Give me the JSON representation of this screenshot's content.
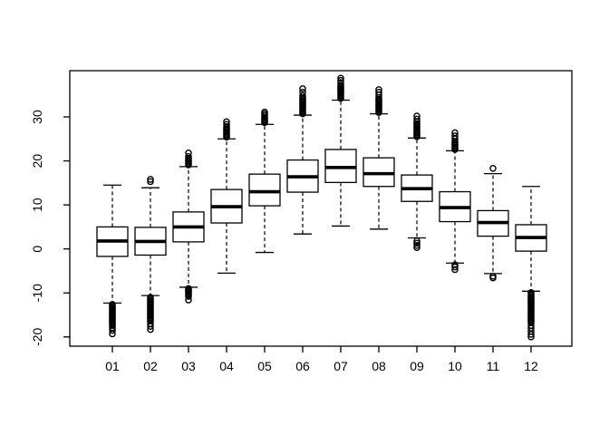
{
  "figure": {
    "title": "",
    "background_color": "#ffffff",
    "stroke_color": "#000000"
  },
  "chart_data": {
    "type": "boxplot",
    "title": "",
    "xlabel": "",
    "ylabel": "",
    "grid": false,
    "legend": null,
    "categories": [
      "01",
      "02",
      "03",
      "04",
      "05",
      "06",
      "07",
      "08",
      "09",
      "10",
      "11",
      "12"
    ],
    "y_ticks": [
      -20,
      -10,
      0,
      10,
      20,
      30
    ],
    "ylim": [
      -22.1,
      40.5
    ],
    "box_fill": "#ffffff",
    "whisker_style": "dashed",
    "series": [
      {
        "month": "01",
        "median": 1.8,
        "q1": -1.7,
        "q3": 5.0,
        "whisker_low": -12.3,
        "whisker_high": 14.5,
        "outliers_high": [],
        "outliers_low": [
          -12.6,
          -12.9,
          -13.2,
          -13.5,
          -13.8,
          -14.1,
          -14.4,
          -14.7,
          -15.0,
          -15.3,
          -15.6,
          -15.9,
          -16.2,
          -16.5,
          -16.8,
          -17.1,
          -17.4,
          -17.9,
          -18.5,
          -19.3
        ]
      },
      {
        "month": "02",
        "median": 1.7,
        "q1": -1.4,
        "q3": 4.9,
        "whisker_low": -10.6,
        "whisker_high": 13.9,
        "outliers_high": [
          15.3,
          15.8
        ],
        "outliers_low": [
          -11.0,
          -11.3,
          -11.6,
          -11.9,
          -12.2,
          -12.5,
          -12.8,
          -13.1,
          -13.4,
          -13.7,
          -14.0,
          -14.3,
          -14.6,
          -14.9,
          -15.2,
          -15.5,
          -15.8,
          -16.1,
          -16.4,
          -17.0,
          -17.6,
          -18.3
        ]
      },
      {
        "month": "03",
        "median": 5.0,
        "q1": 1.6,
        "q3": 8.4,
        "whisker_low": -8.7,
        "whisker_high": 18.7,
        "outliers_high": [
          19.1,
          19.4,
          19.7,
          20.0,
          20.3,
          20.6,
          21.0,
          21.8
        ],
        "outliers_low": [
          -9.0,
          -9.3,
          -9.6,
          -9.9,
          -10.2,
          -10.5,
          -10.8,
          -11.6
        ]
      },
      {
        "month": "04",
        "median": 9.6,
        "q1": 5.9,
        "q3": 13.5,
        "whisker_low": -5.5,
        "whisker_high": 25.0,
        "outliers_high": [
          25.4,
          25.7,
          26.0,
          26.3,
          26.6,
          26.9,
          27.2,
          27.5,
          27.8,
          28.3,
          28.9
        ],
        "outliers_low": []
      },
      {
        "month": "05",
        "median": 13.0,
        "q1": 9.8,
        "q3": 17.0,
        "whisker_low": -0.8,
        "whisker_high": 28.3,
        "outliers_high": [
          28.7,
          29.0,
          29.3,
          29.6,
          29.9,
          30.3,
          30.7,
          31.1
        ],
        "outliers_low": []
      },
      {
        "month": "06",
        "median": 16.4,
        "q1": 12.9,
        "q3": 20.2,
        "whisker_low": 3.4,
        "whisker_high": 30.4,
        "outliers_high": [
          30.7,
          31.0,
          31.3,
          31.6,
          31.9,
          32.2,
          32.5,
          32.8,
          33.1,
          33.4,
          33.7,
          34.0,
          34.3,
          34.8,
          35.6,
          36.4
        ],
        "outliers_low": []
      },
      {
        "month": "07",
        "median": 18.5,
        "q1": 15.1,
        "q3": 22.6,
        "whisker_low": 5.2,
        "whisker_high": 33.8,
        "outliers_high": [
          34.2,
          34.5,
          34.8,
          35.1,
          35.4,
          35.7,
          36.0,
          36.3,
          36.6,
          36.9,
          37.2,
          37.8,
          38.3,
          38.8
        ],
        "outliers_low": []
      },
      {
        "month": "08",
        "median": 17.1,
        "q1": 14.2,
        "q3": 20.7,
        "whisker_low": 4.5,
        "whisker_high": 30.7,
        "outliers_high": [
          31.0,
          31.3,
          31.6,
          31.9,
          32.2,
          32.5,
          32.8,
          33.1,
          33.4,
          33.7,
          34.0,
          34.4,
          35.0,
          35.6,
          36.2
        ],
        "outliers_low": []
      },
      {
        "month": "09",
        "median": 13.7,
        "q1": 10.8,
        "q3": 16.8,
        "whisker_low": 2.5,
        "whisker_high": 25.2,
        "outliers_high": [
          25.5,
          25.8,
          26.1,
          26.4,
          26.7,
          27.0,
          27.3,
          27.6,
          27.9,
          28.2,
          28.5,
          28.9,
          29.5,
          30.2
        ],
        "outliers_low": [
          1.8,
          1.3,
          0.8,
          0.3
        ]
      },
      {
        "month": "10",
        "median": 9.4,
        "q1": 6.2,
        "q3": 13.0,
        "whisker_low": -3.2,
        "whisker_high": 22.3,
        "outliers_high": [
          22.6,
          22.9,
          23.2,
          23.5,
          23.8,
          24.1,
          24.4,
          25.0,
          25.7,
          26.4
        ],
        "outliers_low": [
          -3.6,
          -4.1,
          -4.7
        ]
      },
      {
        "month": "11",
        "median": 6.0,
        "q1": 2.9,
        "q3": 8.7,
        "whisker_low": -5.6,
        "whisker_high": 17.1,
        "outliers_high": [
          18.3
        ],
        "outliers_low": [
          -6.2,
          -6.6
        ]
      },
      {
        "month": "12",
        "median": 2.6,
        "q1": -0.5,
        "q3": 5.5,
        "whisker_low": -9.6,
        "whisker_high": 14.2,
        "outliers_high": [],
        "outliers_low": [
          -9.9,
          -10.2,
          -10.5,
          -10.8,
          -11.1,
          -11.4,
          -11.7,
          -12.0,
          -12.3,
          -12.6,
          -12.9,
          -13.2,
          -13.5,
          -13.8,
          -14.1,
          -14.4,
          -14.7,
          -15.0,
          -15.3,
          -15.6,
          -15.9,
          -16.2,
          -16.5,
          -16.8,
          -17.4,
          -18.0,
          -18.7,
          -19.4,
          -20.0
        ]
      }
    ]
  }
}
